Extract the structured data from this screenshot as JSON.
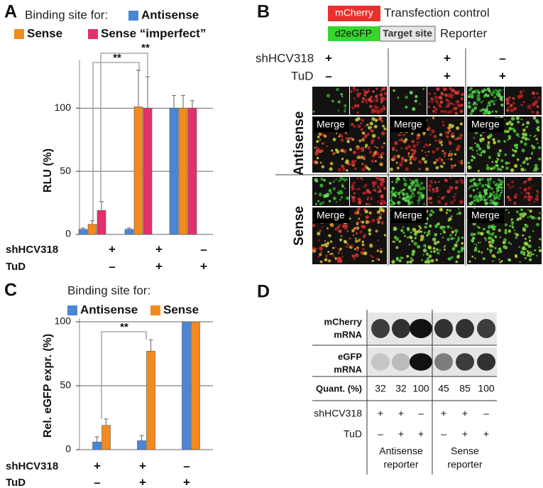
{
  "chart_data": [
    {
      "type": "bar",
      "label": "A",
      "legend_title": "Binding site for:",
      "ylabel": "RLU (%)",
      "series": [
        {
          "name": "Antisense",
          "color": "#4a86d8",
          "values": [
            4,
            4,
            100
          ],
          "errors": [
            1,
            1,
            10
          ]
        },
        {
          "name": "Sense",
          "color": "#f28a1e",
          "values": [
            8,
            101,
            100
          ],
          "errors": [
            3,
            29,
            10
          ]
        },
        {
          "name": "Sense “imperfect”",
          "color": "#e2306f",
          "values": [
            19,
            100,
            100
          ],
          "errors": [
            7,
            25,
            6
          ]
        }
      ],
      "ylim": [
        0,
        135
      ],
      "yticks": [
        0,
        50,
        100
      ],
      "grid": true,
      "conditions": [
        {
          "label": "shHCV318",
          "values": [
            "+",
            "+",
            "–"
          ]
        },
        {
          "label": "TuD",
          "values": [
            "–",
            "+",
            "+"
          ]
        }
      ],
      "annotations": [
        "**",
        "**"
      ]
    },
    {
      "type": "bar",
      "label": "C",
      "legend_title": "Binding site for:",
      "ylabel": "Rel. eGFP expr. (%)",
      "series": [
        {
          "name": "Antisense",
          "color": "#4a86d8",
          "values": [
            6,
            7,
            100
          ],
          "errors": [
            4,
            4,
            0
          ]
        },
        {
          "name": "Sense",
          "color": "#f28a1e",
          "values": [
            19,
            77,
            100
          ],
          "errors": [
            5,
            9,
            0
          ]
        }
      ],
      "ylim": [
        0,
        100
      ],
      "yticks": [
        0,
        50,
        100
      ],
      "grid": true,
      "conditions": [
        {
          "label": "shHCV318",
          "values": [
            "+",
            "+",
            "–"
          ]
        },
        {
          "label": "TuD",
          "values": [
            "–",
            "+",
            "+"
          ]
        }
      ],
      "annotations": [
        "**"
      ]
    }
  ],
  "figure_b": {
    "label": "B",
    "legend": {
      "mcherry": "mCherry",
      "transfection": "Transfection control",
      "d2egfp": "d2eGFP",
      "target_site": "Target site",
      "reporter": "Reporter"
    },
    "conditions": [
      {
        "label": "shHCV318",
        "values": [
          "+",
          "+",
          "–"
        ]
      },
      {
        "label": "TuD",
        "values": [
          "–",
          "+",
          "+"
        ]
      }
    ],
    "rows": [
      "Antisense",
      "Sense"
    ],
    "merge_labels": [
      "Merge",
      "Merge",
      "Merge",
      "Merge",
      "Merge",
      "Merge"
    ]
  },
  "figure_d": {
    "label": "D",
    "rows": [
      [
        "mCherry",
        "mRNA"
      ],
      [
        "eGFP",
        "mRNA"
      ]
    ],
    "quant_label": "Quant. (%)",
    "quant": [
      32,
      32,
      100,
      45,
      85,
      100
    ],
    "conditions": [
      {
        "label": "shHCV318",
        "values": [
          "+",
          "+",
          "–",
          "+",
          "+",
          "–"
        ]
      },
      {
        "label": "TuD",
        "values": [
          "–",
          "+",
          "+",
          "–",
          "+",
          "+"
        ]
      }
    ],
    "groups": [
      [
        "Antisense",
        "reporter"
      ],
      [
        "Sense",
        "reporter"
      ]
    ]
  }
}
